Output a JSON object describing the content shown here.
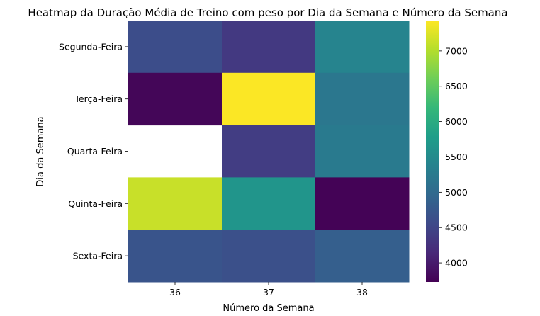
{
  "chart_data": {
    "type": "heatmap",
    "title": "Heatmap da Duração Média de Treino com peso por Dia da Semana e Número da Semana",
    "xlabel": "Número da Semana",
    "ylabel": "Dia da Semana",
    "x_categories": [
      "36",
      "37",
      "38"
    ],
    "y_categories": [
      "Segunda-Feira",
      "Terça-Feira",
      "Quarta-Feira",
      "Quinta-Feira",
      "Sexta-Feira"
    ],
    "values": [
      [
        4600,
        4350,
        5400
      ],
      [
        3780,
        7420,
        5200
      ],
      [
        null,
        4400,
        5250
      ],
      [
        7130,
        5650,
        3750
      ],
      [
        4700,
        4650,
        4850
      ]
    ],
    "colorbar": {
      "min": 3730,
      "max": 7430,
      "ticks": [
        4000,
        4500,
        5000,
        5500,
        6000,
        6500,
        7000
      ]
    },
    "colormap": "viridis",
    "missing_cells": "blank (white)"
  }
}
